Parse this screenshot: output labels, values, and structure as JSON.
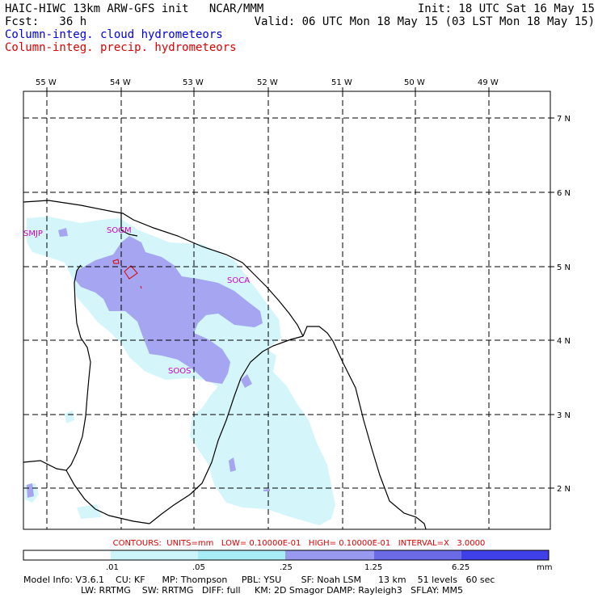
{
  "header": {
    "left_line1": "HAIC-HIWC 13km ARW-GFS init   NCAR/MMM",
    "left_line2": "Fcst:   36 h",
    "right_line1": "Init: 18 UTC Sat 16 May 15",
    "right_line2": "Valid: 06 UTC Mon 18 May 15 (03 LST Mon 18 May 15)",
    "field1": "Column-integ. cloud hydrometeors",
    "field2": "Column-integ. precip. hydrometeors"
  },
  "longitude_labels": [
    "55 W",
    "54 W",
    "53 W",
    "52 W",
    "51 W",
    "50 W",
    "49 W"
  ],
  "latitude_labels": [
    "7 N",
    "6 N",
    "5 N",
    "4 N",
    "3 N",
    "2 N"
  ],
  "stations": [
    "SMJP",
    "SOGM",
    "SOCA",
    "SOOS"
  ],
  "contours_line": "CONTOURS:  UNITS=mm   LOW= 0.10000E-01   HIGH= 0.10000E-01   INTERVAL=X   3.0000",
  "colorbar": {
    "unit": "mm",
    "ticks": [
      ".01",
      ".05",
      ".25",
      "1.25",
      "6.25"
    ],
    "colors": [
      "#ffffff",
      "#ccf5fa",
      "#a8ecf5",
      "#9999f0",
      "#6b6be8",
      "#4040ea",
      "#1a1ae8"
    ]
  },
  "model_info": {
    "line1": "Model Info: V3.6.1    CU: KF      MP: Thompson     PBL: YSU       SF: Noah LSM      13 km    51 levels   60 sec",
    "line2": "LW: RRTMG    SW: RRTMG   DIFF: full     KM: 2D Smagor DAMP: Rayleigh3   SFLAY: MM5"
  },
  "colors": {
    "cloud_light": "#d4f6fb",
    "cloud_medium": "#a5a5f2",
    "precip_contour": "#dd0000"
  }
}
